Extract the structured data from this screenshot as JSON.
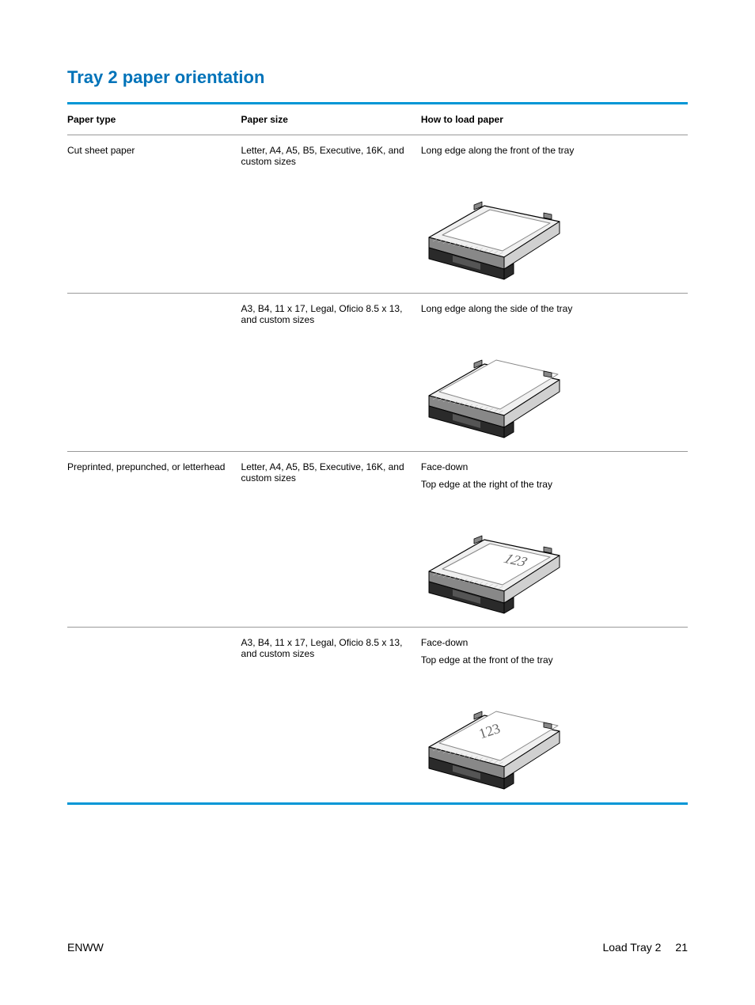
{
  "colors": {
    "accent": "#0096d6",
    "title": "#0073b9",
    "border_light": "#999999",
    "text": "#000000",
    "tray_dark": "#2a2a2a",
    "tray_mid": "#888888",
    "tray_light": "#d0d0d0",
    "tray_edge": "#000000"
  },
  "title": "Tray 2 paper orientation",
  "title_fontsize": 22,
  "table": {
    "headers": [
      "Paper type",
      "Paper size",
      "How to load paper"
    ],
    "rows": [
      {
        "paper_type": "Cut sheet paper",
        "paper_size": "Letter, A4, A5, B5, Executive, 16K, and custom sizes",
        "how_to_load": [
          "Long edge along the front of the tray"
        ],
        "orientation": "front",
        "has_mark": false
      },
      {
        "paper_type": "",
        "paper_size": "A3, B4, 11 x 17, Legal, Oficio 8.5 x 13, and custom sizes",
        "how_to_load": [
          "Long edge along the side of the tray"
        ],
        "orientation": "side",
        "has_mark": false
      },
      {
        "paper_type": "Preprinted, prepunched, or letterhead",
        "paper_size": "Letter, A4, A5, B5, Executive, 16K, and custom sizes",
        "how_to_load": [
          "Face-down",
          "Top edge at the right of the tray"
        ],
        "orientation": "front",
        "has_mark": true
      },
      {
        "paper_type": "",
        "paper_size": "A3, B4, 11 x 17, Legal, Oficio 8.5 x 13, and custom sizes",
        "how_to_load": [
          "Face-down",
          "Top edge at the front of the tray"
        ],
        "orientation": "side",
        "has_mark": true
      }
    ]
  },
  "footer": {
    "left": "ENWW",
    "right_label": "Load Tray 2",
    "page": "21"
  }
}
